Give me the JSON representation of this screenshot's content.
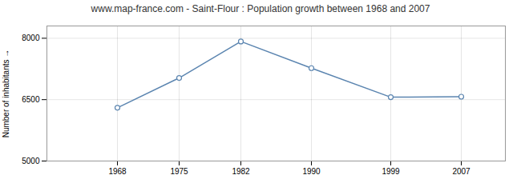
{
  "chart_data": {
    "type": "line",
    "title": "www.map-france.com - Saint-Flour : Population growth between 1968 and 2007",
    "ylabel": "Number of inhabitants",
    "x": [
      1968,
      1975,
      1982,
      1990,
      1999,
      2007
    ],
    "values": [
      6302,
      7030,
      7921,
      7270,
      6560,
      6572
    ],
    "color": "#5b85b0",
    "marker": "circle",
    "xlim": [
      1960,
      2012
    ],
    "xticks": [
      1968,
      1975,
      1982,
      1990,
      1999,
      2007
    ],
    "ylim": [
      5000,
      8300
    ],
    "yticks": [
      5000,
      6500,
      8000
    ],
    "grid": true
  }
}
